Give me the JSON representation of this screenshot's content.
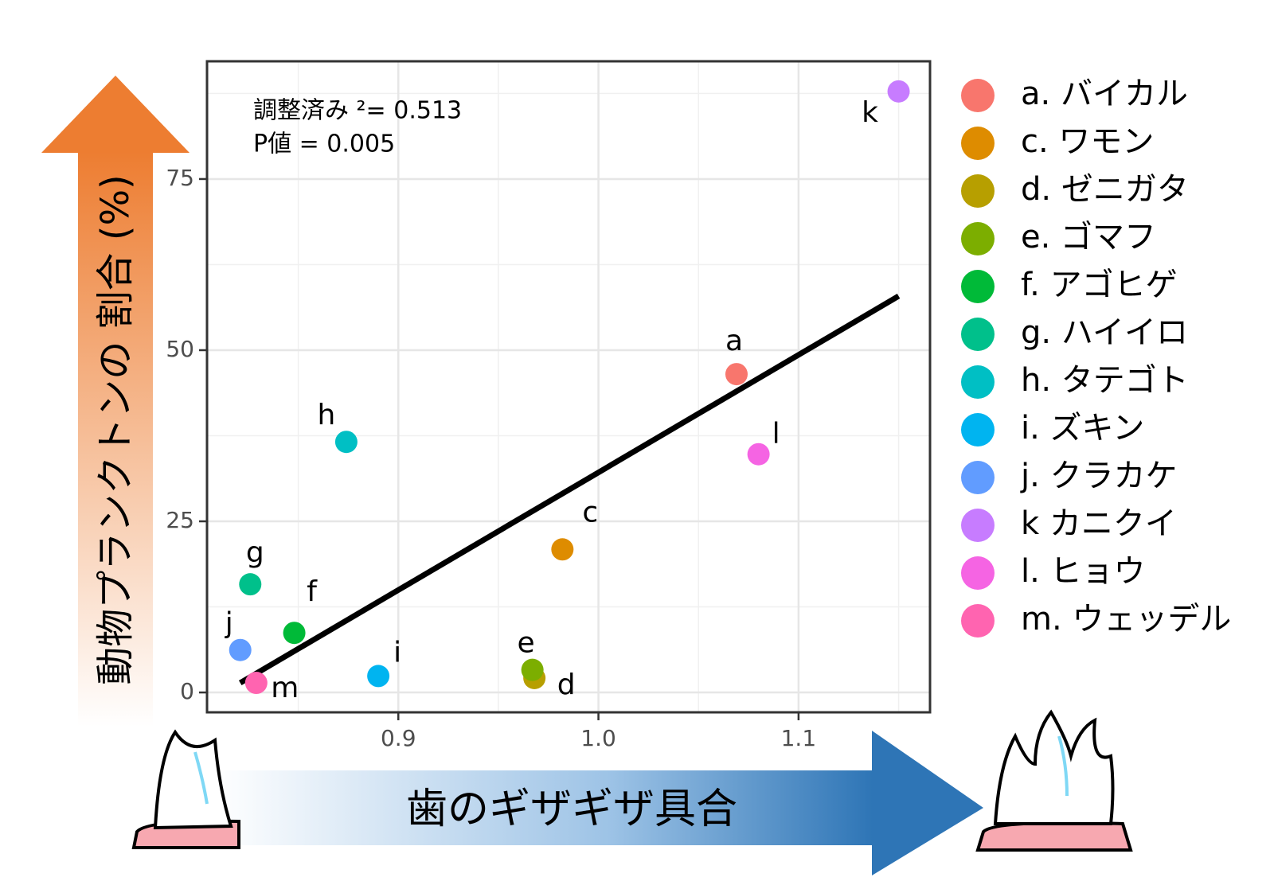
{
  "chart_data": {
    "type": "scatter",
    "y_axis_label": "動物プランクトンの 割合 (%)",
    "x_axis_label": "歯のギザギザ具合",
    "annotations": [
      "調整済み ²= 0.513",
      "P値 = 0.005"
    ],
    "labels": [
      "a",
      "c",
      "d",
      "e",
      "f",
      "g",
      "h",
      "i",
      "j",
      "k",
      "l",
      "m"
    ],
    "series": [
      {
        "name": "a. バイカル",
        "color": "#F8766D",
        "x": [
          1.069
        ],
        "values": [
          46.5
        ]
      },
      {
        "name": "c. ワモン",
        "color": "#DE8C00",
        "x": [
          0.982
        ],
        "values": [
          20.9
        ]
      },
      {
        "name": "d. ゼニガタ",
        "color": "#B79F00",
        "x": [
          0.968
        ],
        "values": [
          2.1
        ]
      },
      {
        "name": "e. ゴマフ",
        "color": "#7CAE00",
        "x": [
          0.967
        ],
        "values": [
          3.3
        ]
      },
      {
        "name": "f. アゴヒゲ",
        "color": "#00BA38",
        "x": [
          0.848
        ],
        "values": [
          8.7
        ]
      },
      {
        "name": "g. ハイイロ",
        "color": "#00C08B",
        "x": [
          0.826
        ],
        "values": [
          15.8
        ]
      },
      {
        "name": "h. タテゴト",
        "color": "#00BFC4",
        "x": [
          0.874
        ],
        "values": [
          36.6
        ]
      },
      {
        "name": "i. ズキン",
        "color": "#00B4F0",
        "x": [
          0.89
        ],
        "values": [
          2.4
        ]
      },
      {
        "name": "j. クラカケ",
        "color": "#619CFF",
        "x": [
          0.821
        ],
        "values": [
          6.2
        ]
      },
      {
        "name": "k カニクイ",
        "color": "#C77CFF",
        "x": [
          1.15
        ],
        "values": [
          87.8
        ]
      },
      {
        "name": "l. ヒョウ",
        "color": "#F564E3",
        "x": [
          1.08
        ],
        "values": [
          34.8
        ]
      },
      {
        "name": "m. ウェッデル",
        "color": "#FF64B0",
        "x": [
          0.829
        ],
        "values": [
          1.4
        ]
      }
    ],
    "trend_line": {
      "x": [
        0.821,
        1.15
      ],
      "values": [
        1.4,
        57.9
      ],
      "color": "#000000"
    },
    "xlim": [
      0.8044,
      1.1657
    ],
    "xticks": [
      0.9,
      {
        "value": 1.0,
        "label": "1.0"
      },
      1.1
    ],
    "ylim": [
      -2.9,
      92.2
    ],
    "yticks": [
      0,
      25,
      50,
      75
    ],
    "grid": true,
    "legend": "right"
  }
}
